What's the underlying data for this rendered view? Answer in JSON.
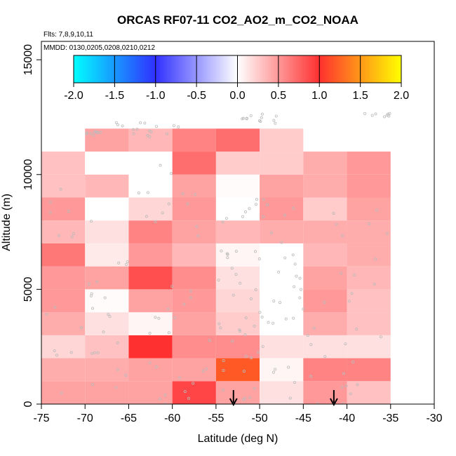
{
  "chart_data": {
    "type": "heatmap",
    "title": "ORCAS RF07-11 CO2_AO2_m_CO2_NOAA",
    "flights_note": "Flts: 7,8,9,10,11",
    "dates_note": "MMDD: 0130,0205,0208,0210,0212",
    "xlabel": "Latitude (deg N)",
    "ylabel": "Altitude (m)",
    "xlim": [
      -75,
      -30
    ],
    "ylim": [
      0,
      15800
    ],
    "xticks": [
      "-75",
      "-70",
      "-65",
      "-60",
      "-55",
      "-50",
      "-45",
      "-40",
      "-35",
      "-30"
    ],
    "yticks": [
      "0",
      "5000",
      "10000",
      "15000"
    ],
    "colorbar": {
      "range": [
        -2.0,
        2.0
      ],
      "ticks": [
        "-2.0",
        "-1.5",
        "-1.0",
        "-0.5",
        "0.0",
        "0.5",
        "1.0",
        "1.5",
        "2.0"
      ]
    },
    "colors": {
      "neg_end": "#00ffff",
      "neg_mid": "#3030ff",
      "zero": "#ffffff",
      "pos_mid": "#ff3030",
      "pos_end": "#ffff00",
      "points": "#bbbbbb"
    },
    "lat_bin_edges": [
      -75,
      -70,
      -65,
      -60,
      -55,
      -50,
      -45,
      -40,
      -35
    ],
    "alt_bin_edges": [
      0,
      1000,
      2000,
      3000,
      4000,
      5000,
      6000,
      7000,
      8000,
      9000,
      10000,
      11000,
      12000
    ],
    "cells": [
      [
        0.45,
        0.45,
        0.45,
        0.9,
        0.45,
        0.15,
        0.5,
        0.3
      ],
      [
        0.4,
        0.4,
        0.45,
        0.45,
        1.2,
        0.05,
        0.6,
        0.6
      ],
      [
        0.2,
        0.3,
        1.0,
        0.55,
        0.55,
        0.15,
        0.15,
        0.15
      ],
      [
        0.4,
        0.15,
        0.05,
        0.45,
        0.25,
        0.0,
        0.4,
        0.3
      ],
      [
        0.5,
        0.02,
        0.45,
        0.5,
        0.2,
        0.0,
        0.5,
        0.3
      ],
      [
        0.5,
        0.45,
        0.85,
        0.55,
        0.15,
        0.0,
        0.45,
        0.35
      ],
      [
        0.65,
        0.1,
        0.5,
        0.35,
        0.05,
        0.0,
        0.35,
        0.4
      ],
      [
        0.35,
        0.15,
        0.6,
        0.45,
        0.35,
        0.4,
        0.4,
        0.4
      ],
      [
        0.5,
        0.0,
        0.2,
        0.5,
        0.0,
        0.5,
        0.25,
        0.45
      ],
      [
        0.3,
        0.35,
        0.0,
        0.45,
        0.02,
        0.45,
        0.4,
        0.5
      ],
      [
        0.3,
        0.0,
        0.0,
        0.7,
        0.25,
        0.25,
        0.4,
        0.5
      ],
      [
        null,
        0.45,
        0.35,
        0.6,
        0.7,
        0.25,
        null,
        null
      ]
    ],
    "arrow_latitudes": [
      -53,
      -41.5
    ],
    "sample_point_groups": [
      {
        "lat_range": [
          -75,
          -62
        ],
        "alt_range": [
          0,
          9500
        ],
        "count": 40
      },
      {
        "lat_range": [
          -62,
          -55
        ],
        "alt_range": [
          0,
          10500
        ],
        "count": 30
      },
      {
        "lat_range": [
          -55,
          -45
        ],
        "alt_range": [
          0,
          9000
        ],
        "count": 70
      },
      {
        "lat_range": [
          -45,
          -35
        ],
        "alt_range": [
          0,
          8500
        ],
        "count": 30
      },
      {
        "lat_range": [
          -70,
          -58
        ],
        "alt_range": [
          11600,
          12300
        ],
        "count": 25
      },
      {
        "lat_range": [
          -52,
          -47
        ],
        "alt_range": [
          12200,
          12700
        ],
        "count": 12
      },
      {
        "lat_range": [
          -38,
          -35
        ],
        "alt_range": [
          12500,
          12700
        ],
        "count": 8
      }
    ]
  }
}
